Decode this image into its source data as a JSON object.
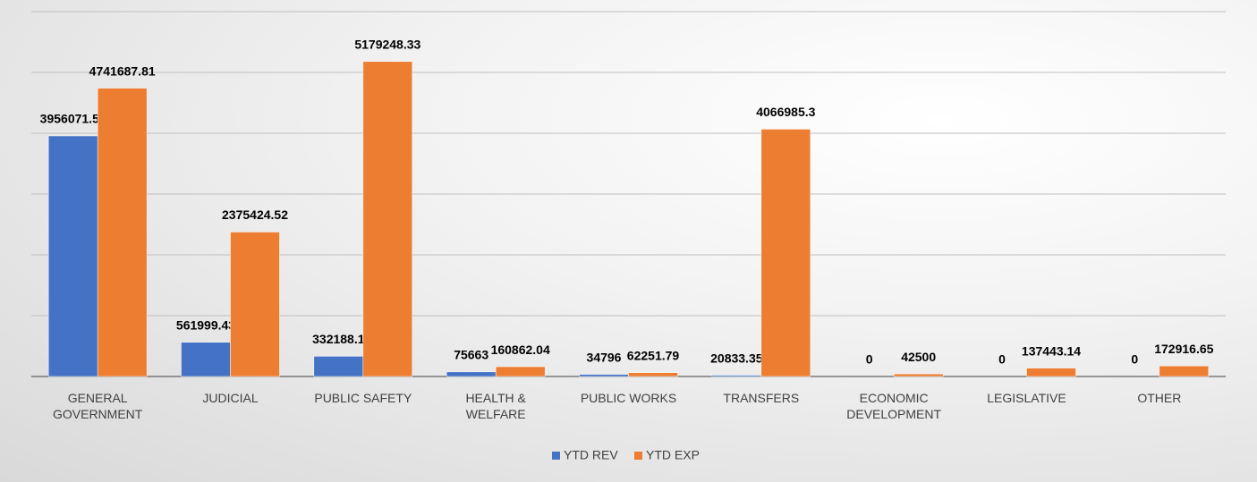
{
  "chart_data": {
    "type": "bar",
    "categories": [
      "GENERAL GOVERNMENT",
      "JUDICIAL",
      "PUBLIC SAFETY",
      "HEALTH & WELFARE",
      "PUBLIC WORKS",
      "TRANSFERS",
      "ECONOMIC DEVELOPMENT",
      "LEGISLATIVE",
      "OTHER"
    ],
    "series": [
      {
        "name": "YTD REV",
        "color": "#4472c4",
        "values": [
          3956071.56,
          561999.43,
          332188.1,
          75663,
          34796,
          20833.35,
          0,
          0,
          0
        ]
      },
      {
        "name": "YTD EXP",
        "color": "#ed7d31",
        "values": [
          4741687.81,
          2375424.52,
          5179248.33,
          160862.04,
          62251.79,
          4066985.3,
          42500,
          137443.14,
          172916.65
        ]
      }
    ],
    "ylim": [
      0,
      6000000
    ],
    "yticks": [
      0,
      1000000,
      2000000,
      3000000,
      4000000,
      5000000,
      6000000
    ],
    "grid": true,
    "legend": "bottom"
  }
}
